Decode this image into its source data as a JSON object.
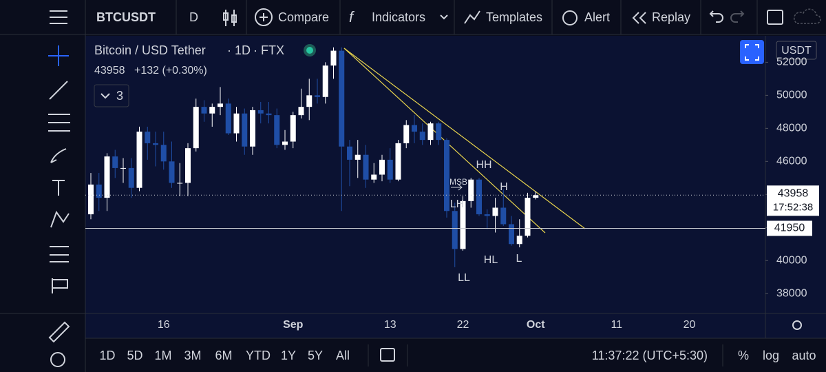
{
  "toolbar": {
    "symbol": "BTCUSDT",
    "interval": "D",
    "compare": "Compare",
    "indicators": "Indicators",
    "templates": "Templates",
    "alert": "Alert",
    "replay": "Replay"
  },
  "legend": {
    "name": "Bitcoin / USD Tether",
    "interval": "1D",
    "exchange": "FTX",
    "change": "+132 (+0.30%)",
    "indicators_count": "3"
  },
  "chart_data": {
    "type": "candlestick",
    "currency": "USDT",
    "categories": [
      null,
      null,
      null,
      null,
      null,
      null,
      null,
      null,
      null,
      "16",
      null,
      null,
      null,
      null,
      null,
      null,
      null,
      null,
      null,
      null,
      null,
      null,
      null,
      null,
      null,
      "Sep",
      null,
      null,
      null,
      null,
      null,
      null,
      null,
      null,
      null,
      null,
      null,
      "13",
      null,
      null,
      null,
      null,
      null,
      null,
      null,
      null,
      "22",
      null,
      null,
      null,
      null,
      null,
      null,
      null,
      null,
      "Oct",
      null,
      null,
      null,
      null,
      null,
      null,
      null,
      null,
      null,
      "11",
      null,
      null,
      null,
      null,
      null,
      null,
      null,
      null,
      "20",
      null,
      null,
      null,
      null,
      null,
      null,
      null,
      null,
      null
    ],
    "open": [
      42800,
      44600,
      43800,
      46300,
      45600,
      45600,
      44400,
      47800,
      47100,
      47000,
      46000,
      44700,
      44700,
      46800,
      49300,
      48900,
      49300,
      49500,
      47700,
      48900,
      46900,
      49100,
      48900,
      48800,
      47000,
      47200,
      48800,
      49300,
      50000,
      49900,
      51800,
      52700,
      46900,
      46100,
      46400,
      44900,
      45200,
      46100,
      44900,
      47100,
      48200,
      47800,
      47300,
      48300,
      47300,
      43000,
      40700,
      43600,
      44900,
      42800,
      42700,
      43200,
      42200,
      41000,
      41500,
      43800,
      null,
      null,
      null,
      null,
      null,
      null,
      null,
      null,
      null,
      null,
      null,
      null,
      null,
      null,
      null,
      null,
      null,
      null,
      null,
      null,
      null,
      null,
      null,
      null,
      null,
      null,
      null,
      null
    ],
    "high": [
      45300,
      45300,
      46500,
      46700,
      46200,
      46200,
      48100,
      48100,
      47800,
      47800,
      47200,
      45900,
      47100,
      49800,
      49700,
      49500,
      50500,
      49800,
      49300,
      49200,
      49300,
      49600,
      49600,
      49200,
      47900,
      49000,
      50400,
      51000,
      51000,
      52000,
      52900,
      52900,
      47300,
      47300,
      47000,
      45900,
      46400,
      46800,
      47300,
      48500,
      48800,
      48300,
      48400,
      48400,
      47400,
      43500,
      43900,
      45000,
      45000,
      43100,
      43800,
      44300,
      42700,
      42500,
      44100,
      44200,
      null,
      null,
      null,
      null,
      null,
      null,
      null,
      null,
      null,
      null,
      null,
      null,
      null,
      null,
      null,
      null,
      null,
      null,
      null,
      null,
      null,
      null,
      null,
      null,
      null,
      null,
      null,
      null
    ],
    "low": [
      42500,
      43000,
      43000,
      45000,
      44700,
      43800,
      44200,
      46100,
      45700,
      45500,
      44400,
      43900,
      43900,
      46600,
      48400,
      48100,
      48800,
      47600,
      47200,
      46400,
      46400,
      48300,
      48300,
      46800,
      46700,
      46800,
      48600,
      48500,
      49500,
      49500,
      51000,
      43000,
      44500,
      45000,
      44400,
      44700,
      44800,
      44700,
      44800,
      46800,
      47100,
      47000,
      47000,
      47000,
      42600,
      39600,
      40600,
      43200,
      42700,
      41900,
      41700,
      42100,
      40900,
      40800,
      41400,
      43700,
      null,
      null,
      null,
      null,
      null,
      null,
      null,
      null,
      null,
      null,
      null,
      null,
      null,
      null,
      null,
      null,
      null,
      null,
      null,
      null,
      null,
      null,
      null,
      null,
      null,
      null,
      null,
      null
    ],
    "close": [
      44600,
      43800,
      46300,
      45600,
      45600,
      44400,
      47800,
      47100,
      47000,
      46000,
      44700,
      44700,
      46800,
      49300,
      48900,
      49300,
      49500,
      47700,
      48900,
      46900,
      49100,
      48900,
      48800,
      47000,
      47200,
      48800,
      49300,
      50000,
      49900,
      51800,
      52700,
      46900,
      46100,
      46400,
      44900,
      45200,
      46100,
      44900,
      47100,
      48200,
      47800,
      47300,
      48300,
      47300,
      43000,
      40700,
      43600,
      44900,
      42800,
      42700,
      43200,
      42200,
      41000,
      41500,
      43800,
      43958,
      null,
      null,
      null,
      null,
      null,
      null,
      null,
      null,
      null,
      null,
      null,
      null,
      null,
      null,
      null,
      null,
      null,
      null,
      null,
      null,
      null,
      null,
      null,
      null,
      null,
      null,
      null,
      null
    ],
    "up_color": "#ffffff",
    "down_color": "#1f4ea6",
    "ylim": [
      36800,
      53600
    ],
    "yticks": [
      38000,
      40000,
      42000,
      44000,
      46000,
      48000,
      50000,
      52000
    ],
    "last_price": 43958,
    "countdown": "17:52:38",
    "level": 41950,
    "annotations": [
      "MSB",
      "LH",
      "HH",
      "H",
      "HL",
      "L",
      "LL"
    ]
  },
  "bottom_bar": {
    "ranges": [
      "1D",
      "5D",
      "1M",
      "3M",
      "6M",
      "YTD",
      "1Y",
      "5Y",
      "All"
    ],
    "time": "11:37:22 (UTC+5:30)",
    "percent": "%",
    "log": "log",
    "auto": "auto"
  }
}
